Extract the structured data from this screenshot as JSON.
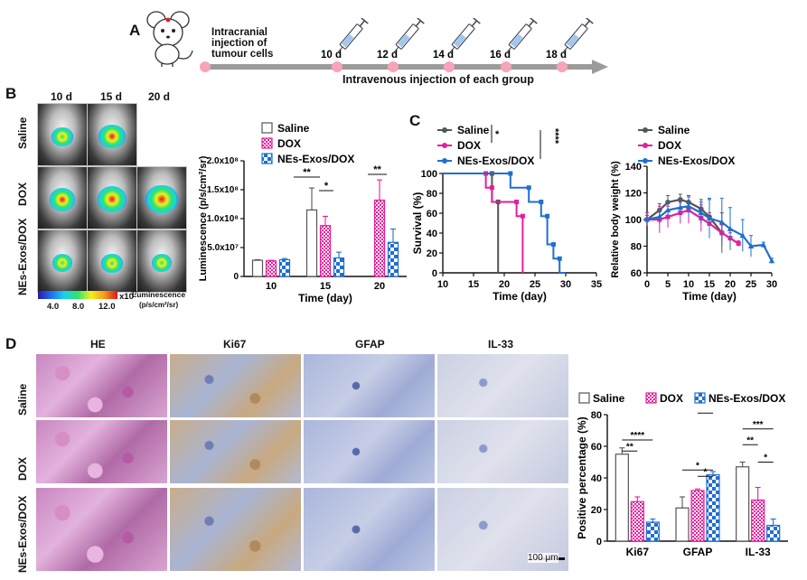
{
  "panel_labels": {
    "a": "A",
    "b": "B",
    "c": "C",
    "d": "D"
  },
  "timeline": {
    "injection_label": "Intracranial injection of tumour cells",
    "injection_lines": [
      "Intracranial",
      "injection of",
      "tumour cells"
    ],
    "days": [
      "10 d",
      "12 d",
      "14 d",
      "16 d",
      "18 d"
    ],
    "group_label": "Intravenous injection of each group",
    "dot_color": "#f7a3b8",
    "arrow_color": "#9b9b9b"
  },
  "imaging": {
    "columns": [
      "10 d",
      "15 d",
      "20 d"
    ],
    "rows": [
      "Saline",
      "DOX",
      "NEs-Exos/DOX"
    ],
    "colorbar_ticks": [
      "4.0",
      "8.0",
      "12.0"
    ],
    "colorbar_exponent": "x10",
    "colorbar_exp_power": "7",
    "colorbar_title": "Luminescence",
    "colorbar_unit": "(p/s/cm²/sr)"
  },
  "histology": {
    "columns": [
      "HE",
      "Ki67",
      "GFAP",
      "IL-33"
    ],
    "rows": [
      "Saline",
      "DOX",
      "NEs-Exos/DOX"
    ],
    "scale_bar": "100 μm"
  },
  "colors": {
    "saline": "#555555",
    "dox": "#e61e9c",
    "nes": "#1f6fd1"
  },
  "chart_data": [
    {
      "id": "luminescence",
      "type": "bar",
      "categories": [
        "10",
        "15",
        "20"
      ],
      "series": [
        {
          "name": "Saline",
          "values": [
            28000000.0,
            115000000.0,
            null
          ],
          "errors": [
            1000000.0,
            38000000.0,
            null
          ]
        },
        {
          "name": "DOX",
          "values": [
            27000000.0,
            88000000.0,
            132000000.0
          ],
          "errors": [
            1000000.0,
            16000000.0,
            35000000.0
          ]
        },
        {
          "name": "NEs-Exos/DOX",
          "values": [
            29000000.0,
            32000000.0,
            59000000.0
          ],
          "errors": [
            2000000.0,
            10000000.0,
            23000000.0
          ]
        }
      ],
      "xlabel": "Time (day)",
      "ylabel": "Luminescence (p/s/cm²/sr)",
      "ylim": [
        0,
        200000000.0
      ],
      "yticks": [
        "0",
        "5.0x10⁷",
        "1.0x10⁸",
        "1.5x10⁸",
        "2.0x10⁸"
      ],
      "significance": [
        "**",
        "*",
        "**"
      ],
      "legend_position": "top-right"
    },
    {
      "id": "survival",
      "type": "line",
      "series": [
        {
          "name": "Saline",
          "x": [
            10,
            18,
            18,
            19,
            19
          ],
          "y": [
            100,
            100,
            71.4,
            71.4,
            0
          ]
        },
        {
          "name": "DOX",
          "x": [
            10,
            17,
            17,
            18,
            18,
            22,
            22,
            23,
            23
          ],
          "y": [
            100,
            100,
            85.7,
            85.7,
            71.4,
            71.4,
            57.1,
            57.1,
            0
          ]
        },
        {
          "name": "NEs-Exos/DOX",
          "x": [
            10,
            21,
            21,
            24,
            24,
            26,
            26,
            27,
            27,
            28,
            28,
            29,
            29,
            30
          ],
          "y": [
            100,
            100,
            85.7,
            85.7,
            71.4,
            71.4,
            57.1,
            57.1,
            28.6,
            28.6,
            14.3,
            14.3,
            0,
            0
          ]
        }
      ],
      "xlabel": "Time (day)",
      "ylabel": "Survival (%)",
      "xlim": [
        10,
        35
      ],
      "ylim": [
        0,
        100
      ],
      "xticks": [
        10,
        15,
        20,
        25,
        30,
        35
      ],
      "yticks": [
        0,
        20,
        40,
        60,
        80,
        100
      ],
      "significance": [
        "*",
        "****"
      ],
      "legend_position": "top-left"
    },
    {
      "id": "body_weight",
      "type": "line",
      "series": [
        {
          "name": "Saline",
          "x": [
            0,
            3,
            5,
            8,
            10,
            13,
            15,
            18
          ],
          "y": [
            100,
            107,
            113,
            115,
            113,
            108,
            102,
            90
          ],
          "errors": [
            3,
            5,
            5,
            4,
            5,
            7,
            13,
            15
          ]
        },
        {
          "name": "DOX",
          "x": [
            0,
            3,
            5,
            8,
            10,
            13,
            15,
            18,
            20,
            22
          ],
          "y": [
            100,
            100,
            102,
            105,
            107,
            101,
            97,
            90,
            86,
            82
          ],
          "errors": [
            5,
            10,
            8,
            8,
            10,
            10,
            8,
            6,
            4,
            2
          ]
        },
        {
          "name": "NEs-Exos/DOX",
          "x": [
            0,
            3,
            5,
            8,
            10,
            13,
            15,
            18,
            20,
            23,
            25,
            28,
            30
          ],
          "y": [
            100,
            102,
            107,
            109,
            110,
            105,
            101,
            98,
            93,
            88,
            80,
            81,
            69
          ],
          "errors": [
            3,
            5,
            6,
            6,
            8,
            8,
            15,
            18,
            16,
            12,
            8,
            2,
            2
          ]
        }
      ],
      "xlabel": "Time (day)",
      "ylabel": "Relative body weight (%)",
      "xlim": [
        0,
        30
      ],
      "ylim": [
        60,
        140
      ],
      "xticks": [
        0,
        5,
        10,
        15,
        20,
        25,
        30
      ],
      "yticks": [
        60,
        80,
        100,
        120,
        140
      ],
      "legend_position": "top-left"
    },
    {
      "id": "positive_percentage",
      "type": "bar",
      "categories": [
        "Ki67",
        "GFAP",
        "IL-33"
      ],
      "series": [
        {
          "name": "Saline",
          "values": [
            55,
            21,
            47
          ],
          "errors": [
            4,
            7,
            3
          ]
        },
        {
          "name": "DOX",
          "values": [
            25,
            32,
            26
          ],
          "errors": [
            3,
            1,
            8
          ]
        },
        {
          "name": "NEs-Exos/DOX",
          "values": [
            12,
            42,
            10
          ],
          "errors": [
            2,
            2,
            4
          ]
        }
      ],
      "xlabel": "",
      "ylabel": "Positive percentage (%)",
      "ylim": [
        0,
        80
      ],
      "yticks": [
        0,
        20,
        40,
        60,
        80
      ],
      "significance": [
        "****",
        "**",
        "**",
        "*",
        "*",
        "***",
        "**",
        "*"
      ],
      "legend_position": "top"
    }
  ]
}
